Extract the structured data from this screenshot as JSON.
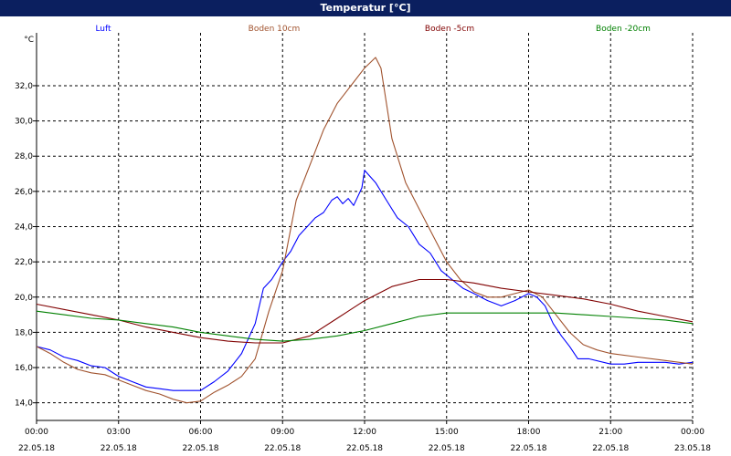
{
  "window": {
    "title": "Temperatur [°C]"
  },
  "chart_data": {
    "type": "line",
    "title": "Temperatur [°C]",
    "ylabel": "°C",
    "xlabel": "",
    "ylim": [
      13.0,
      35.0
    ],
    "xlim": [
      0,
      24
    ],
    "grid": true,
    "legend_position": "top",
    "y_ticks": [
      "14,0",
      "16,0",
      "18,0",
      "20,0",
      "22,0",
      "24,0",
      "26,0",
      "28,0",
      "30,0",
      "32,0"
    ],
    "y_tick_values": [
      14,
      16,
      18,
      20,
      22,
      24,
      26,
      28,
      30,
      32
    ],
    "x_ticks": [
      {
        "time": "00:00",
        "date": "22.05.18",
        "hour": 0
      },
      {
        "time": "03:00",
        "date": "22.05.18",
        "hour": 3
      },
      {
        "time": "06:00",
        "date": "22.05.18",
        "hour": 6
      },
      {
        "time": "09:00",
        "date": "22.05.18",
        "hour": 9
      },
      {
        "time": "12:00",
        "date": "22.05.18",
        "hour": 12
      },
      {
        "time": "15:00",
        "date": "22.05.18",
        "hour": 15
      },
      {
        "time": "18:00",
        "date": "22.05.18",
        "hour": 18
      },
      {
        "time": "21:00",
        "date": "22.05.18",
        "hour": 21
      },
      {
        "time": "00:00",
        "date": "23.05.18",
        "hour": 24
      }
    ],
    "series": [
      {
        "name": "Luft",
        "color": "#0000ff",
        "x": [
          0,
          0.5,
          1,
          1.5,
          2,
          2.5,
          3,
          3.5,
          4,
          4.5,
          5,
          5.5,
          6,
          6.5,
          7,
          7.5,
          8,
          8.3,
          8.6,
          9,
          9.3,
          9.6,
          9.9,
          10.2,
          10.5,
          10.8,
          11,
          11.2,
          11.4,
          11.6,
          11.9,
          12,
          12.4,
          12.8,
          13.2,
          13.6,
          14,
          14.4,
          14.8,
          15.2,
          15.6,
          16,
          16.5,
          17,
          17.5,
          18,
          18.3,
          18.6,
          18.9,
          19.2,
          19.5,
          19.8,
          20.2,
          21,
          21.5,
          22,
          22.5,
          23,
          23.5,
          24
        ],
        "y": [
          17.2,
          17.0,
          16.6,
          16.4,
          16.1,
          16.0,
          15.5,
          15.2,
          14.9,
          14.8,
          14.7,
          14.7,
          14.7,
          15.2,
          15.8,
          16.8,
          18.5,
          20.5,
          21.0,
          22.0,
          22.6,
          23.5,
          24.0,
          24.5,
          24.8,
          25.5,
          25.7,
          25.3,
          25.6,
          25.2,
          26.2,
          27.2,
          26.5,
          25.5,
          24.5,
          24.0,
          23.0,
          22.5,
          21.5,
          21.0,
          20.5,
          20.2,
          19.8,
          19.5,
          19.8,
          20.2,
          20.0,
          19.5,
          18.5,
          17.8,
          17.2,
          16.5,
          16.5,
          16.2,
          16.2,
          16.3,
          16.3,
          16.3,
          16.2,
          16.3
        ]
      },
      {
        "name": "Boden 10cm",
        "color": "#a0522d",
        "x": [
          0,
          0.5,
          1,
          1.5,
          2,
          2.5,
          3,
          3.5,
          4,
          4.5,
          5,
          5.5,
          6,
          6.5,
          7,
          7.5,
          8,
          8.5,
          9,
          9.5,
          10,
          10.5,
          11,
          11.5,
          12,
          12.4,
          12.6,
          13,
          13.5,
          14,
          14.5,
          15,
          15.5,
          16,
          16.5,
          17,
          17.5,
          18,
          18.5,
          19,
          19.5,
          20,
          20.5,
          21,
          22,
          23,
          24
        ],
        "y": [
          17.2,
          16.8,
          16.3,
          15.9,
          15.7,
          15.6,
          15.3,
          15.0,
          14.7,
          14.5,
          14.2,
          14.0,
          14.1,
          14.6,
          15.0,
          15.5,
          16.5,
          19.2,
          21.5,
          25.5,
          27.5,
          29.5,
          31.0,
          32.0,
          33.0,
          33.6,
          33.0,
          29.0,
          26.5,
          25.0,
          23.5,
          22.0,
          21.0,
          20.3,
          20.0,
          20.0,
          20.2,
          20.4,
          20.0,
          19.0,
          18.0,
          17.3,
          17.0,
          16.8,
          16.6,
          16.4,
          16.2
        ]
      },
      {
        "name": "Boden -5cm",
        "color": "#800000",
        "x": [
          0,
          1,
          2,
          3,
          4,
          5,
          6,
          7,
          8,
          9,
          10,
          11,
          12,
          13,
          14,
          15,
          16,
          17,
          18,
          19,
          20,
          21,
          22,
          23,
          24
        ],
        "y": [
          19.6,
          19.3,
          19.0,
          18.7,
          18.3,
          18.0,
          17.7,
          17.5,
          17.4,
          17.4,
          17.8,
          18.8,
          19.8,
          20.6,
          21.0,
          21.0,
          20.8,
          20.5,
          20.3,
          20.1,
          19.9,
          19.6,
          19.2,
          18.9,
          18.6
        ]
      },
      {
        "name": "Boden -20cm",
        "color": "#008000",
        "x": [
          0,
          1,
          2,
          3,
          4,
          5,
          6,
          7,
          8,
          9,
          10,
          11,
          12,
          13,
          14,
          15,
          16,
          17,
          18,
          19,
          20,
          21,
          22,
          23,
          24
        ],
        "y": [
          19.2,
          19.0,
          18.8,
          18.7,
          18.5,
          18.3,
          18.0,
          17.8,
          17.6,
          17.5,
          17.6,
          17.8,
          18.1,
          18.5,
          18.9,
          19.1,
          19.1,
          19.1,
          19.1,
          19.1,
          19.0,
          18.9,
          18.8,
          18.7,
          18.5
        ]
      }
    ]
  }
}
